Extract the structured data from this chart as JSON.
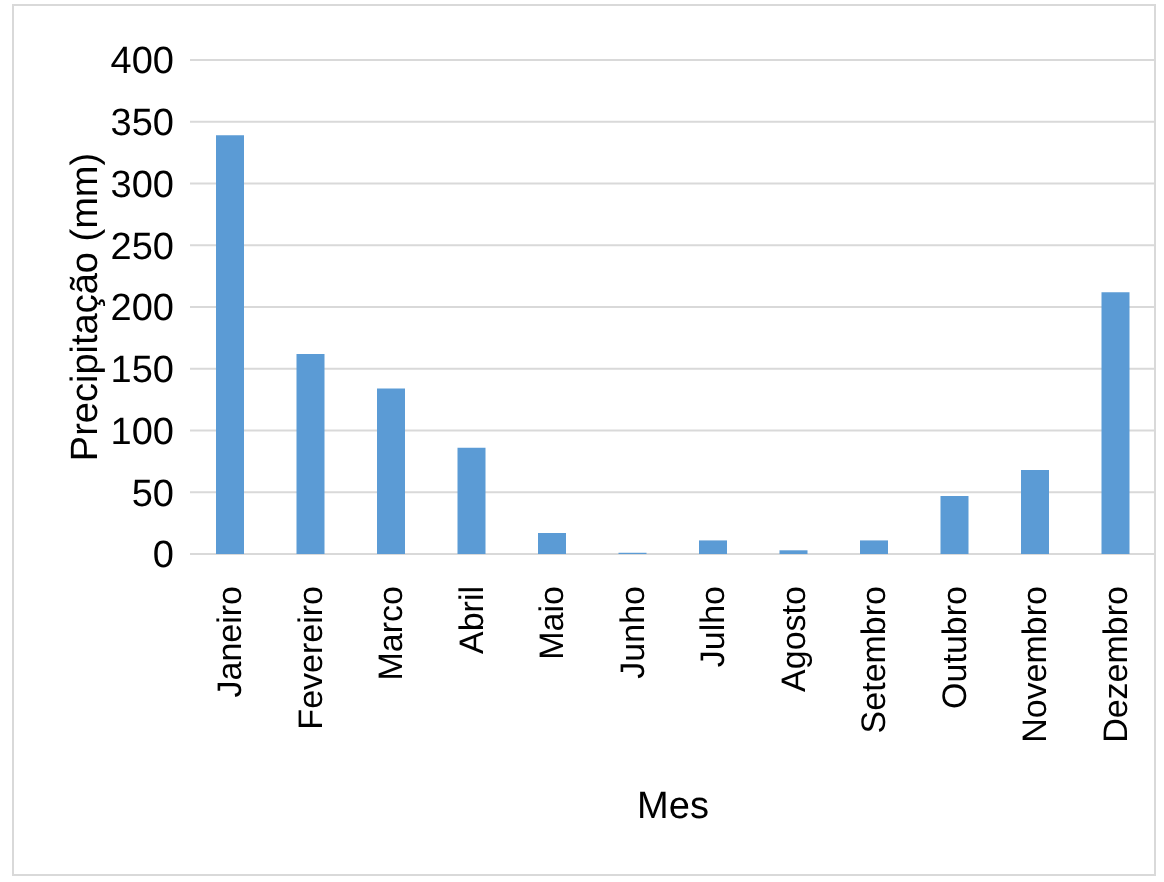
{
  "chart_data": {
    "type": "bar",
    "xlabel": "Mes",
    "ylabel": "Precipitação (mm)",
    "categories": [
      "Janeiro",
      "Fevereiro",
      "Marco",
      "Abril",
      "Maio",
      "Junho",
      "Julho",
      "Agosto",
      "Setembro",
      "Outubro",
      "Novembro",
      "Dezembro"
    ],
    "values": [
      339,
      162,
      134,
      86,
      17,
      1,
      11,
      3,
      11,
      47,
      68,
      212
    ],
    "color": "#5b9bd5",
    "ylim": [
      0,
      400
    ],
    "yticks": [
      0,
      50,
      100,
      150,
      200,
      250,
      300,
      350,
      400
    ],
    "grid": "y"
  }
}
